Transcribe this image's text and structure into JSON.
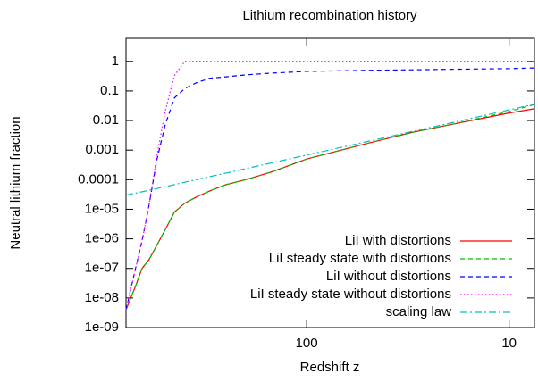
{
  "chart_data": {
    "type": "line",
    "title": "Lithium recombination history",
    "xlabel": "Redshift z",
    "ylabel": "Neutral lithium fraction",
    "xscale": "log",
    "yscale": "log",
    "xreversed": true,
    "xlim": [
      780,
      7.5
    ],
    "ylim": [
      1e-09,
      6
    ],
    "xticks": [
      100,
      10
    ],
    "yticks": [
      1,
      0.1,
      0.01,
      0.001,
      0.0001,
      {
        "value": 1e-05,
        "label": "1e-05"
      },
      {
        "value": 1e-06,
        "label": "1e-06"
      },
      {
        "value": 1e-07,
        "label": "1e-07"
      },
      {
        "value": 1e-08,
        "label": "1e-08"
      },
      {
        "value": 1e-09,
        "label": "1e-09"
      }
    ],
    "legend": "lower right",
    "x": [
      780,
      700,
      650,
      600,
      550,
      500,
      450,
      400,
      350,
      300,
      250,
      200,
      150,
      100,
      50,
      30,
      20,
      10,
      7.5
    ],
    "series": [
      {
        "name": "LiI with distortions",
        "color": "#ff0000",
        "dash": "solid",
        "values": [
          4e-09,
          2.5e-08,
          1e-07,
          2e-07,
          6e-07,
          2e-06,
          8e-06,
          1.6e-05,
          2.6e-05,
          4.2e-05,
          6.8e-05,
          0.0001,
          0.00018,
          0.0005,
          0.0017,
          0.004,
          0.007,
          0.018,
          0.025
        ]
      },
      {
        "name": "LiI steady state with distortions",
        "color": "#00c000",
        "dash": "dashed",
        "values": [
          4e-09,
          2.5e-08,
          1e-07,
          2e-07,
          6e-07,
          2e-06,
          8e-06,
          1.6e-05,
          2.6e-05,
          4.2e-05,
          6.8e-05,
          0.0001,
          0.00018,
          0.0005,
          0.0017,
          0.004,
          0.007,
          0.02,
          0.035
        ]
      },
      {
        "name": "LiI without distortions",
        "color": "#0000ff",
        "dash": "dashed",
        "values": [
          4e-09,
          1e-07,
          8.5e-07,
          1.4e-05,
          0.00045,
          0.007,
          0.058,
          0.12,
          0.19,
          0.27,
          0.3,
          0.35,
          0.4,
          0.46,
          0.5,
          0.52,
          0.54,
          0.57,
          0.6
        ]
      },
      {
        "name": "LiI steady state without distortions",
        "color": "#ff00ff",
        "dash": "dotted",
        "values": [
          4e-09,
          1e-07,
          8.5e-07,
          1.4e-05,
          0.0006,
          0.02,
          0.33,
          1,
          1,
          1,
          1,
          1,
          1,
          1,
          1,
          1,
          1,
          1,
          1
        ]
      },
      {
        "name": "scaling law",
        "color": "#00c0c0",
        "dash": "dashdot",
        "values": [
          3e-05,
          3.5e-05,
          3.9e-05,
          4.4e-05,
          5e-05,
          5.8e-05,
          6.8e-05,
          8.2e-05,
          0.0001,
          0.000127,
          0.000167,
          0.000236,
          0.000366,
          0.00068,
          0.00196,
          0.0043,
          0.0079,
          0.0229,
          0.0355
        ]
      }
    ]
  }
}
